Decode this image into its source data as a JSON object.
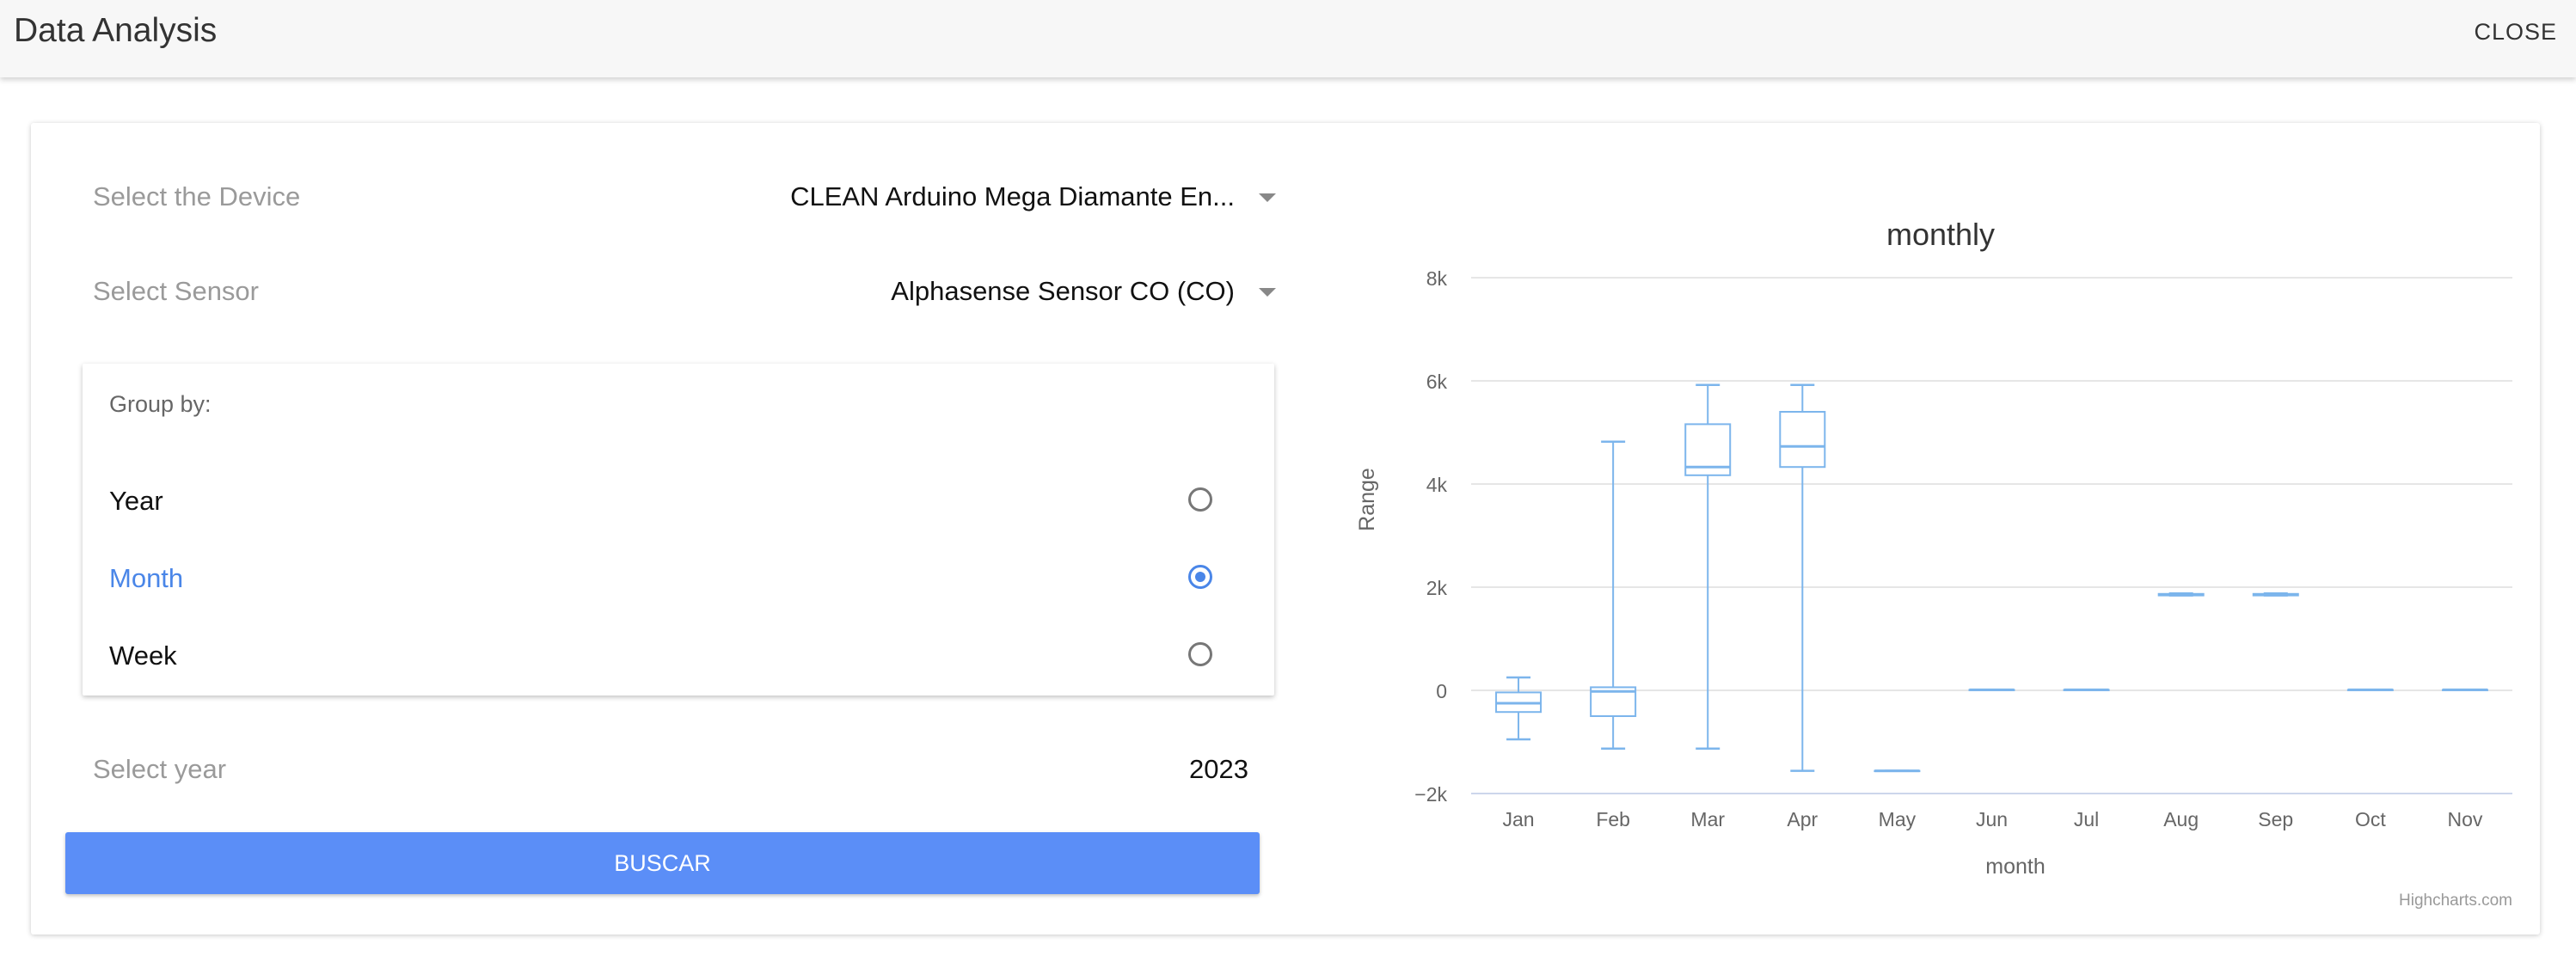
{
  "header": {
    "title": "Data Analysis",
    "close_label": "CLOSE"
  },
  "form": {
    "device_label": "Select the Device",
    "device_value": "CLEAN Arduino Mega Diamante En...",
    "sensor_label": "Select Sensor",
    "sensor_value": "Alphasense Sensor CO (CO)",
    "group_by_title": "Group by:",
    "group_options": [
      {
        "label": "Year",
        "selected": false
      },
      {
        "label": "Month",
        "selected": true
      },
      {
        "label": "Week",
        "selected": false
      }
    ],
    "year_label": "Select year",
    "year_value": "2023",
    "search_label": "BUSCAR"
  },
  "colors": {
    "accent": "#4a86e8",
    "button": "#5b8ef7",
    "series": "#7cb5ec"
  },
  "chart_data": {
    "type": "boxplot",
    "title": "monthly",
    "xlabel": "month",
    "ylabel": "Range",
    "credits": "Highcharts.com",
    "categories": [
      "Jan",
      "Feb",
      "Mar",
      "Apr",
      "May",
      "Jun",
      "Jul",
      "Aug",
      "Sep",
      "Oct",
      "Nov"
    ],
    "ylim": [
      -2000,
      8000
    ],
    "yticks": [
      -2000,
      0,
      2000,
      4000,
      6000,
      8000
    ],
    "ytick_labels": [
      "−2k",
      "0",
      "2k",
      "4k",
      "6k",
      "8k"
    ],
    "grid": true,
    "series": [
      {
        "boxes": [
          {
            "low": -950,
            "q1": -420,
            "median": -250,
            "q3": -40,
            "high": 250
          },
          {
            "low": -1130,
            "q1": -500,
            "median": -20,
            "q3": 60,
            "high": 4820
          },
          {
            "low": -1130,
            "q1": 4170,
            "median": 4330,
            "q3": 5160,
            "high": 5920
          },
          {
            "low": -1560,
            "q1": 4330,
            "median": 4730,
            "q3": 5400,
            "high": 5920
          },
          {
            "low": -1560,
            "q1": -1560,
            "median": -1560,
            "q3": -1560,
            "high": -1560
          },
          {
            "low": 10,
            "q1": 10,
            "median": 10,
            "q3": 10,
            "high": 10
          },
          {
            "low": 10,
            "q1": 10,
            "median": 10,
            "q3": 10,
            "high": 10
          },
          {
            "low": 1840,
            "q1": 1840,
            "median": 1850,
            "q3": 1870,
            "high": 1880
          },
          {
            "low": 1840,
            "q1": 1840,
            "median": 1850,
            "q3": 1870,
            "high": 1880
          },
          {
            "low": 10,
            "q1": 10,
            "median": 10,
            "q3": 10,
            "high": 10
          },
          {
            "low": 10,
            "q1": 10,
            "median": 10,
            "q3": 10,
            "high": 10
          }
        ]
      }
    ]
  }
}
